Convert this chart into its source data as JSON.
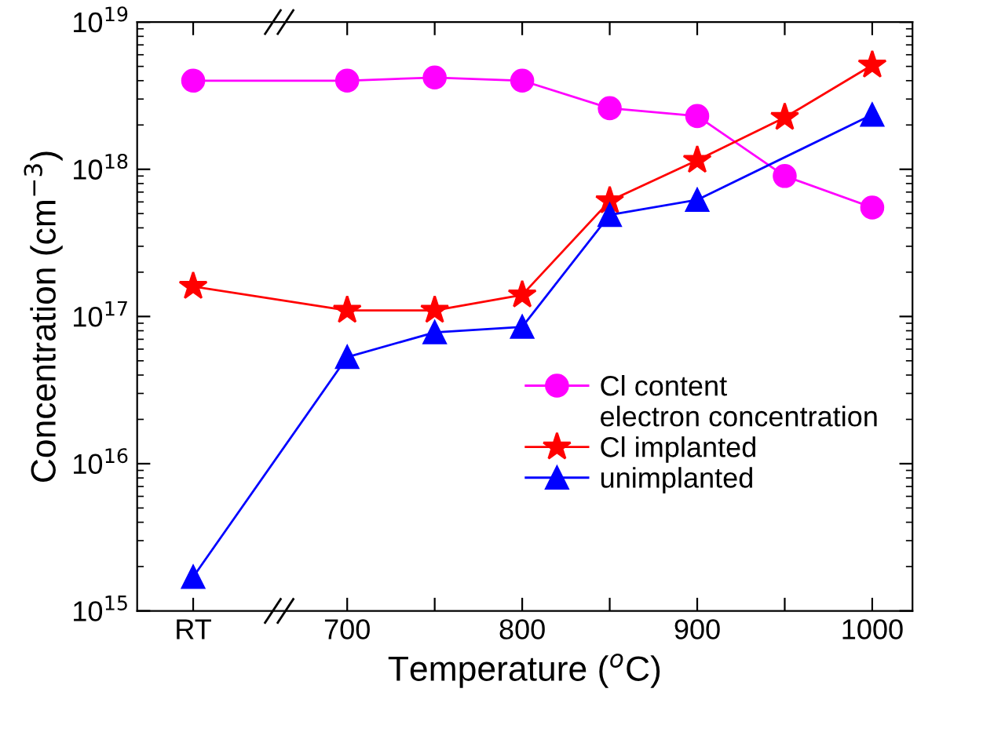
{
  "chart_data": {
    "type": "line",
    "xlabel": "Temperature ($^{o}$C)",
    "ylabel": "Concentration (cm$^{−3}$)",
    "x": [
      612,
      700,
      750,
      800,
      850,
      900,
      950,
      1000
    ],
    "series": [
      {
        "name": "Cl content",
        "color": "#ff00ff",
        "marker": "circle",
        "values": [
          4e+18,
          4e+18,
          4.2e+18,
          4e+18,
          2.6e+18,
          2.3e+18,
          9e+17,
          5.5e+17
        ]
      },
      {
        "name": "Cl implanted",
        "color": "#ff0000",
        "marker": "star",
        "values": [
          1.6e+17,
          1.1e+17,
          1.1e+17,
          1.4e+17,
          6.1e+17,
          1.15e+18,
          2.25e+18,
          5.1e+18
        ]
      },
      {
        "name": "unimplanted",
        "color": "#0000ff",
        "marker": "triangle",
        "x": [
          612,
          700,
          750,
          800,
          850,
          900,
          1000
        ],
        "values": [
          1700000000000000.0,
          5.3e+16,
          7.8e+16,
          8.5e+16,
          4.9e+17,
          6.2e+17,
          2.35e+18
        ]
      }
    ],
    "annotations": [
      "electron concentration"
    ],
    "log": "y",
    "ylim": [
      1000000000000000.0,
      1e+19
    ],
    "yticks": [
      {
        "value": 1000000000000000.0,
        "label": "10$^{15}$"
      },
      {
        "value": 1e+16,
        "label": "10$^{16}$"
      },
      {
        "value": 1e+17,
        "label": "10$^{17}$"
      },
      {
        "value": 1e+18,
        "label": "10$^{18}$"
      },
      {
        "value": 1e+19,
        "label": "10$^{19}$"
      }
    ],
    "xlim": [
      580,
      1023
    ],
    "xticks": [
      {
        "value": 612,
        "label": "RT"
      },
      700,
      {
        "value": 750,
        "label": null
      },
      800,
      {
        "value": 850,
        "label": null
      },
      900,
      {
        "value": 950,
        "label": null
      },
      1000
    ],
    "legend": "right",
    "grid": false,
    "line_style": "solid"
  }
}
